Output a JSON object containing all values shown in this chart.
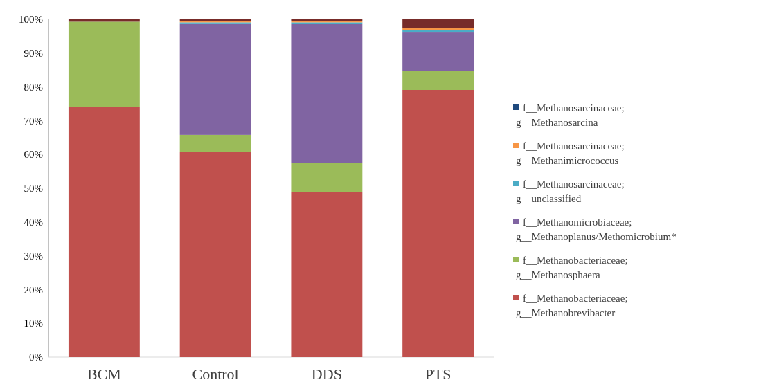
{
  "chart_data": {
    "type": "bar",
    "stacked": true,
    "categories": [
      "BCM",
      "Control",
      "DDS",
      "PTS"
    ],
    "series": [
      {
        "name": "f__Methanobacteriaceae; g__Methanobrevibacter",
        "color": "#c0504d",
        "values": [
          74.0,
          60.7,
          48.8,
          79.1
        ]
      },
      {
        "name": "f__Methanobacteriaceae; g__Methanosphaera",
        "color": "#9bbb59",
        "values": [
          25.3,
          5.1,
          8.6,
          5.7
        ]
      },
      {
        "name": "f__Methanomicrobiaceae; g__Methanoplanus/Methomicrobium*",
        "color": "#8064a2",
        "values": [
          0,
          33.0,
          41.2,
          11.5
        ]
      },
      {
        "name": "f__Methanosarcinaceae; g__unclassified",
        "color": "#4bacc6",
        "values": [
          0,
          0.3,
          0.5,
          0.6
        ]
      },
      {
        "name": "f__Methanosarcinaceae; g__Methanimicrococcus",
        "color": "#f79646",
        "values": [
          0,
          0.3,
          0.4,
          0.5
        ]
      },
      {
        "name": "f__Methanosarcinaceae; g__Methanosarcina",
        "color": "#1f497d",
        "values": [
          0,
          0,
          0,
          0
        ]
      },
      {
        "color": "#772c2a",
        "values": [
          0.7,
          0.6,
          0.5,
          2.6
        ]
      }
    ],
    "ylim": [
      0,
      100
    ],
    "yticks": [
      {
        "value": 0,
        "label": "0%"
      },
      {
        "value": 10,
        "label": "10%"
      },
      {
        "value": 20,
        "label": "20%"
      },
      {
        "value": 30,
        "label": "30%"
      },
      {
        "value": 40,
        "label": "40%"
      },
      {
        "value": 50,
        "label": "50%"
      },
      {
        "value": 60,
        "label": "60%"
      },
      {
        "value": 70,
        "label": "70%"
      },
      {
        "value": 80,
        "label": "80%"
      },
      {
        "value": 90,
        "label": "90%"
      },
      {
        "value": 100,
        "label": "100%"
      }
    ],
    "legend": "right"
  }
}
